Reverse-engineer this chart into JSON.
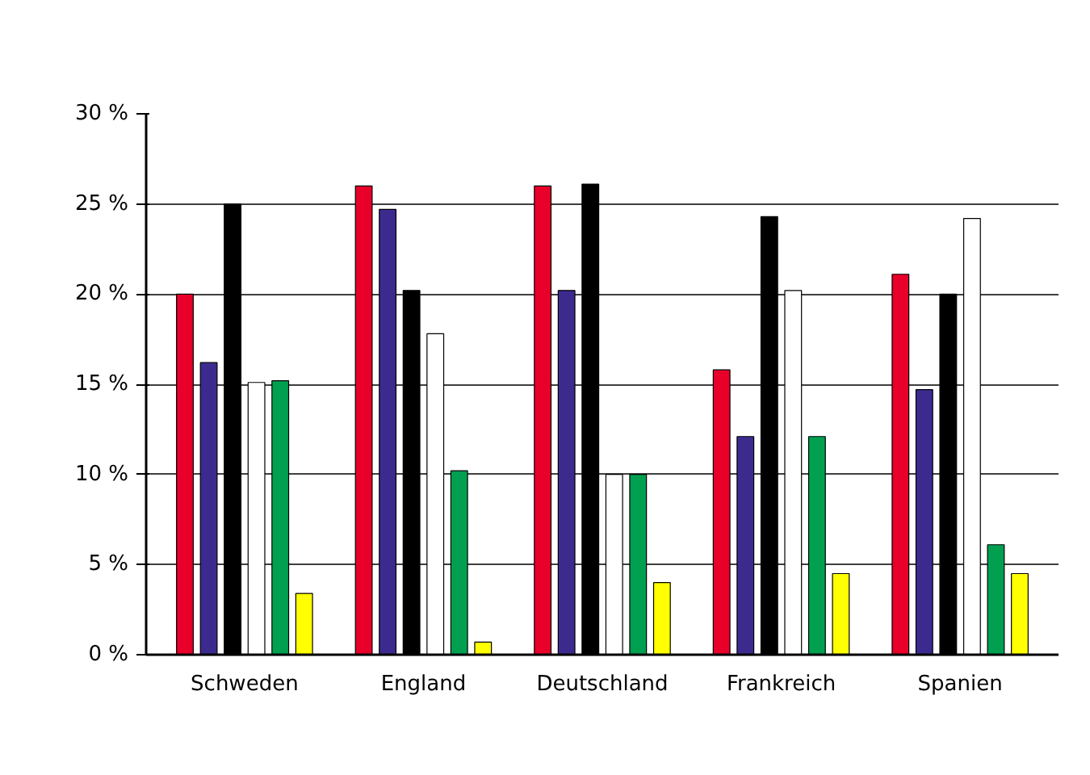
{
  "chart_data": {
    "type": "bar",
    "categories": [
      "Schweden",
      "England",
      "Deutschland",
      "Frankreich",
      "Spanien"
    ],
    "series": [
      {
        "color": "#e8002a",
        "values": [
          20,
          26,
          26,
          15.8,
          21.1
        ]
      },
      {
        "color": "#3d2a8f",
        "values": [
          16.2,
          24.7,
          20.2,
          12.1,
          14.7
        ]
      },
      {
        "color": "#000000",
        "values": [
          25,
          20.2,
          26.1,
          24.3,
          20
        ]
      },
      {
        "color": "#ffffff",
        "values": [
          15.1,
          17.8,
          10,
          20.2,
          24.2
        ]
      },
      {
        "color": "#00a050",
        "values": [
          15.2,
          10.2,
          10,
          12.1,
          6.1
        ]
      },
      {
        "color": "#ffff00",
        "values": [
          3.4,
          0.7,
          4,
          4.5,
          4.5
        ]
      }
    ],
    "ylim": [
      0,
      30
    ],
    "yticks": [
      {
        "value": 0,
        "label": "0 %"
      },
      {
        "value": 5,
        "label": "5 %"
      },
      {
        "value": 10,
        "label": "10 %"
      },
      {
        "value": 15,
        "label": "15 %"
      },
      {
        "value": 20,
        "label": "20 %"
      },
      {
        "value": 25,
        "label": "25 %"
      },
      {
        "value": 30,
        "label": "30 %"
      }
    ],
    "grid": "y"
  }
}
